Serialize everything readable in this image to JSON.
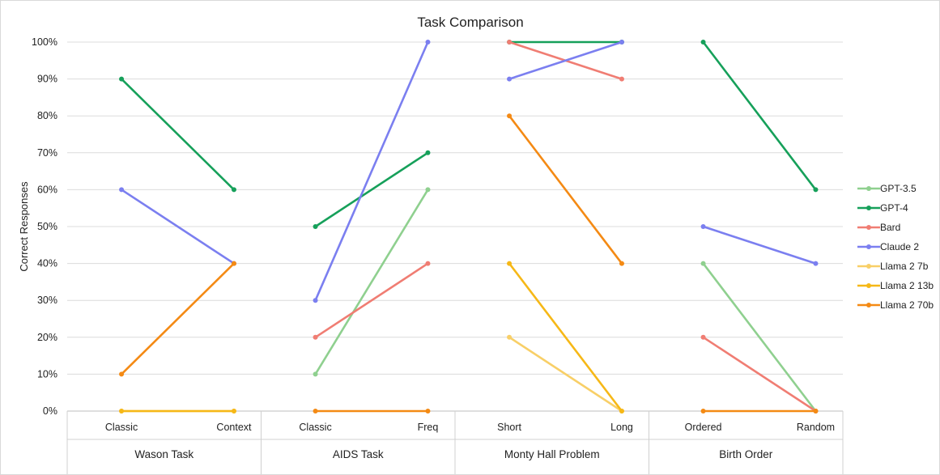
{
  "chart_data": {
    "type": "line",
    "title": "Task Comparison",
    "ylabel": "Correct Responses",
    "ylim": [
      0,
      100
    ],
    "yticks": [
      "0%",
      "10%",
      "20%",
      "30%",
      "40%",
      "50%",
      "60%",
      "70%",
      "80%",
      "90%",
      "100%"
    ],
    "groups": [
      {
        "label": "Wason Task",
        "categories": [
          "Classic",
          "Context"
        ]
      },
      {
        "label": "AIDS Task",
        "categories": [
          "Classic",
          "Freq"
        ]
      },
      {
        "label": "Monty Hall Problem",
        "categories": [
          "Short",
          "Long"
        ]
      },
      {
        "label": "Birth Order",
        "categories": [
          "Ordered",
          "Random"
        ]
      }
    ],
    "grid": true,
    "legend_position": "right",
    "series": [
      {
        "name": "GPT-3.5",
        "color": "#8fd08f",
        "values": [
          null,
          null,
          10,
          60,
          null,
          null,
          40,
          0
        ]
      },
      {
        "name": "GPT-4",
        "color": "#16a05a",
        "values": [
          90,
          60,
          50,
          70,
          100,
          100,
          100,
          60
        ]
      },
      {
        "name": "Bard",
        "color": "#f07d73",
        "values": [
          null,
          null,
          20,
          40,
          100,
          90,
          20,
          0
        ]
      },
      {
        "name": "Claude 2",
        "color": "#7b7ff0",
        "values": [
          60,
          40,
          30,
          100,
          90,
          100,
          50,
          40
        ]
      },
      {
        "name": "Llama 2 7b",
        "color": "#f8cf67",
        "values": [
          0,
          0,
          null,
          null,
          20,
          0,
          null,
          null
        ]
      },
      {
        "name": "Llama 2 13b",
        "color": "#f6b817",
        "values": [
          0,
          0,
          null,
          null,
          40,
          0,
          null,
          null
        ]
      },
      {
        "name": "Llama 2 70b",
        "color": "#f48a14",
        "values": [
          10,
          40,
          0,
          0,
          80,
          40,
          0,
          0
        ]
      }
    ]
  }
}
